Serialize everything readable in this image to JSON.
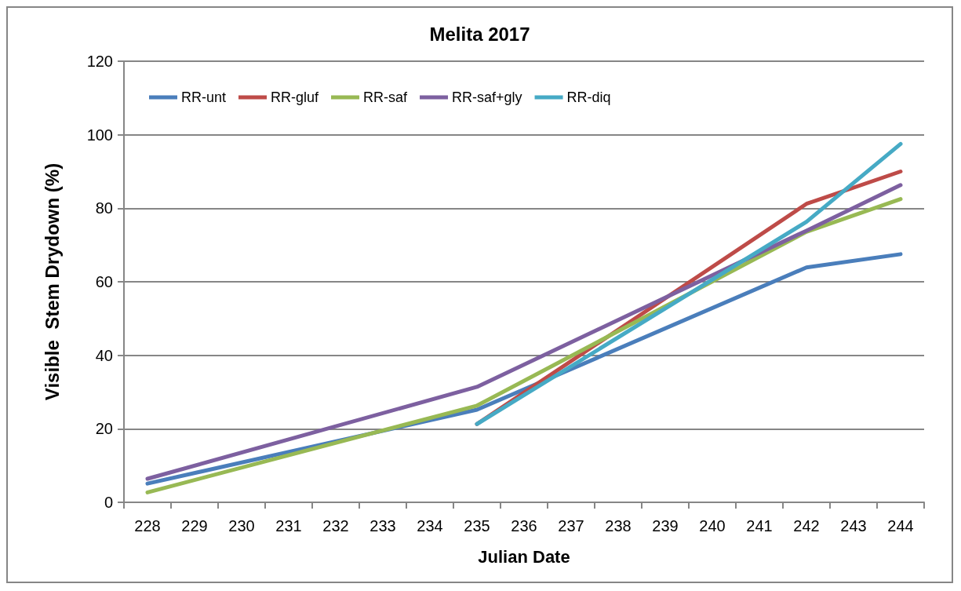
{
  "chart_data": {
    "type": "line",
    "title": "Melita 2017",
    "xlabel": "Julian Date",
    "ylabel": "Visible  Stem Drydown (%)",
    "categories": [
      "228",
      "229",
      "230",
      "231",
      "232",
      "233",
      "234",
      "235",
      "236",
      "237",
      "238",
      "239",
      "240",
      "241",
      "242",
      "243",
      "244"
    ],
    "series": [
      {
        "name": "RR-unt",
        "color": "#4a7ebb",
        "values": [
          5.1,
          null,
          null,
          null,
          null,
          null,
          null,
          25.2,
          null,
          null,
          null,
          null,
          null,
          null,
          63.9,
          null,
          67.5
        ]
      },
      {
        "name": "RR-gluf",
        "color": "#be4b48",
        "values": [
          null,
          null,
          null,
          null,
          null,
          null,
          null,
          21.3,
          null,
          null,
          null,
          null,
          null,
          null,
          81.2,
          null,
          90
        ]
      },
      {
        "name": "RR-saf",
        "color": "#98b954",
        "values": [
          2.7,
          null,
          null,
          null,
          null,
          null,
          null,
          26.3,
          null,
          null,
          null,
          null,
          null,
          null,
          73.6,
          null,
          82.5
        ]
      },
      {
        "name": "RR-saf+gly",
        "color": "#7d60a0",
        "values": [
          6.4,
          null,
          null,
          null,
          null,
          null,
          null,
          31.4,
          null,
          null,
          null,
          null,
          null,
          null,
          73.9,
          null,
          86.3
        ]
      },
      {
        "name": "RR-diq",
        "color": "#46aac5",
        "values": [
          null,
          null,
          null,
          null,
          null,
          null,
          null,
          21.3,
          null,
          null,
          null,
          null,
          null,
          null,
          76.3,
          null,
          97.5
        ]
      }
    ],
    "ylim": [
      0,
      120
    ],
    "yticks": [
      0,
      20,
      40,
      60,
      80,
      100,
      120
    ],
    "grid": "y",
    "legend": "top left",
    "marker": "none",
    "line_style": "solid"
  }
}
